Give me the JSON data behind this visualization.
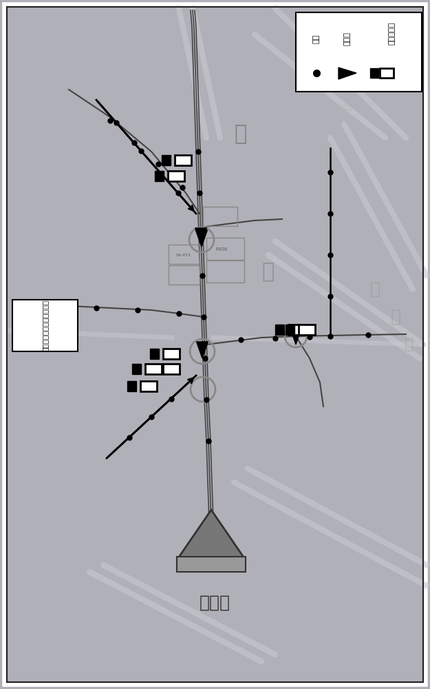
{
  "bg_color": "#b0b0b8",
  "inner_bg": "#b8b8c0",
  "border_color": "#222222",
  "title_box_text": "电网线路地理图电子模拟板",
  "legend_label_1": "电杆",
  "legend_label_2": "功能表",
  "legend_label_3": "故障指示灯",
  "substation_label": "变电所",
  "label_da": "大",
  "label_mian": "面",
  "label_jie": "街",
  "label_lu": "路",
  "label_rong": "容",
  "label_jing": "统",
  "line_color": "#444444",
  "road_color": "#c8c8d0",
  "node_color": "#111111",
  "gray_text": "#888888",
  "faded_text": "#aaaaaa"
}
